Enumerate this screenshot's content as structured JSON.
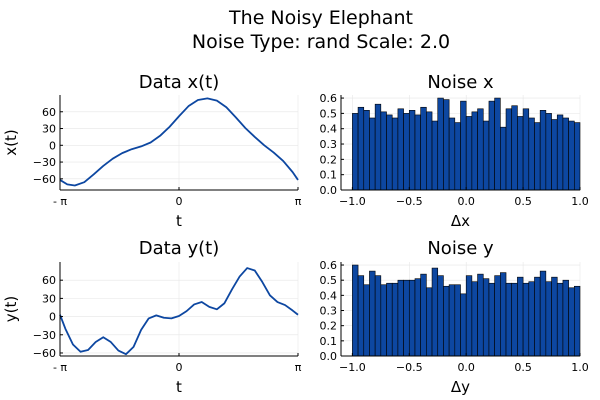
{
  "figure": {
    "title_line1": "The Noisy Elephant",
    "title_line2": "Noise Type: rand Scale: 2.0"
  },
  "colors": {
    "line": "#0d47a1",
    "bar": "#0d47a1",
    "bar_edge": "#000000",
    "grid": "#e6e6e6",
    "axis": "#000000"
  },
  "chart_data": [
    {
      "id": "data-x",
      "type": "line",
      "title": "Data x(t)",
      "xlabel": "t",
      "ylabel": "x(t)",
      "xlim": [
        -3.1416,
        3.1416
      ],
      "ylim": [
        -80,
        90
      ],
      "xticks": [
        {
          "value": -3.1416,
          "label": "- π"
        },
        {
          "value": 0,
          "label": "0"
        },
        {
          "value": 3.1416,
          "label": "π"
        }
      ],
      "yticks": [
        {
          "value": 60,
          "label": "60"
        },
        {
          "value": 30,
          "label": "30"
        },
        {
          "value": 0,
          "label": "0"
        },
        {
          "value": -30,
          "label": "−30"
        },
        {
          "value": -60,
          "label": "−60"
        }
      ],
      "x": [
        -3.1416,
        -2.95,
        -2.75,
        -2.5,
        -2.25,
        -2.0,
        -1.75,
        -1.5,
        -1.25,
        -1.0,
        -0.75,
        -0.5,
        -0.25,
        0,
        0.25,
        0.5,
        0.75,
        1.0,
        1.25,
        1.5,
        1.75,
        2.0,
        2.25,
        2.5,
        2.75,
        3.0,
        3.1416
      ],
      "y": [
        -62,
        -70,
        -72,
        -66,
        -52,
        -37,
        -24,
        -14,
        -7,
        -2,
        5,
        17,
        33,
        52,
        70,
        81,
        84,
        80,
        68,
        50,
        31,
        15,
        0,
        -13,
        -28,
        -48,
        -62
      ]
    },
    {
      "id": "noise-x",
      "type": "bar",
      "title": "Noise x",
      "xlabel": "Δx",
      "ylabel": "",
      "xlim": [
        -1.1,
        1.0
      ],
      "ylim": [
        0,
        0.62
      ],
      "bin_start": -1.0,
      "bin_width": 0.05,
      "xticks": [
        {
          "value": -1.0,
          "label": "−1.0"
        },
        {
          "value": -0.5,
          "label": "−0.5"
        },
        {
          "value": 0.0,
          "label": "0.0"
        },
        {
          "value": 0.5,
          "label": "0.5"
        },
        {
          "value": 1.0,
          "label": "1.0"
        }
      ],
      "yticks": [
        {
          "value": 0.0,
          "label": "0.0"
        },
        {
          "value": 0.1,
          "label": "0.1"
        },
        {
          "value": 0.2,
          "label": "0.2"
        },
        {
          "value": 0.3,
          "label": "0.3"
        },
        {
          "value": 0.4,
          "label": "0.4"
        },
        {
          "value": 0.5,
          "label": "0.5"
        },
        {
          "value": 0.6,
          "label": "0.6"
        }
      ],
      "values": [
        0.5,
        0.54,
        0.52,
        0.47,
        0.56,
        0.51,
        0.49,
        0.47,
        0.53,
        0.5,
        0.52,
        0.49,
        0.54,
        0.51,
        0.45,
        0.6,
        0.59,
        0.47,
        0.44,
        0.58,
        0.48,
        0.51,
        0.53,
        0.45,
        0.58,
        0.6,
        0.41,
        0.53,
        0.55,
        0.48,
        0.53,
        0.47,
        0.44,
        0.52,
        0.5,
        0.46,
        0.49,
        0.47,
        0.45,
        0.44
      ]
    },
    {
      "id": "data-y",
      "type": "line",
      "title": "Data y(t)",
      "xlabel": "t",
      "ylabel": "y(t)",
      "xlim": [
        -3.1416,
        3.1416
      ],
      "ylim": [
        -65,
        90
      ],
      "xticks": [
        {
          "value": -3.1416,
          "label": "- π"
        },
        {
          "value": 0,
          "label": "0"
        },
        {
          "value": 3.1416,
          "label": "π"
        }
      ],
      "yticks": [
        {
          "value": 60,
          "label": "60"
        },
        {
          "value": 30,
          "label": "30"
        },
        {
          "value": 0,
          "label": "0"
        },
        {
          "value": -30,
          "label": "−30"
        },
        {
          "value": -60,
          "label": "−60"
        }
      ],
      "x": [
        -3.1416,
        -3.0,
        -2.8,
        -2.6,
        -2.4,
        -2.2,
        -2.0,
        -1.8,
        -1.6,
        -1.4,
        -1.2,
        -1.0,
        -0.8,
        -0.6,
        -0.4,
        -0.2,
        0,
        0.2,
        0.4,
        0.6,
        0.8,
        1.0,
        1.2,
        1.4,
        1.6,
        1.8,
        2.0,
        2.2,
        2.4,
        2.6,
        2.8,
        3.0,
        3.1416
      ],
      "y": [
        3,
        -20,
        -46,
        -58,
        -55,
        -42,
        -34,
        -42,
        -56,
        -62,
        -50,
        -22,
        -3,
        2,
        -2,
        -3,
        1,
        9,
        20,
        24,
        16,
        12,
        22,
        45,
        66,
        80,
        76,
        57,
        35,
        24,
        19,
        10,
        3
      ]
    },
    {
      "id": "noise-y",
      "type": "bar",
      "title": "Noise y",
      "xlabel": "Δy",
      "ylabel": "",
      "xlim": [
        -1.1,
        1.0
      ],
      "ylim": [
        0,
        0.62
      ],
      "bin_start": -1.0,
      "bin_width": 0.05,
      "xticks": [
        {
          "value": -1.0,
          "label": "−1.0"
        },
        {
          "value": -0.5,
          "label": "−0.5"
        },
        {
          "value": 0.0,
          "label": "0.0"
        },
        {
          "value": 0.5,
          "label": "0.5"
        },
        {
          "value": 1.0,
          "label": "1.0"
        }
      ],
      "yticks": [
        {
          "value": 0.0,
          "label": "0.0"
        },
        {
          "value": 0.1,
          "label": "0.1"
        },
        {
          "value": 0.2,
          "label": "0.2"
        },
        {
          "value": 0.3,
          "label": "0.3"
        },
        {
          "value": 0.4,
          "label": "0.4"
        },
        {
          "value": 0.5,
          "label": "0.5"
        },
        {
          "value": 0.6,
          "label": "0.6"
        }
      ],
      "values": [
        0.6,
        0.53,
        0.47,
        0.56,
        0.53,
        0.47,
        0.48,
        0.48,
        0.5,
        0.5,
        0.5,
        0.51,
        0.54,
        0.45,
        0.58,
        0.53,
        0.46,
        0.47,
        0.47,
        0.41,
        0.53,
        0.49,
        0.54,
        0.51,
        0.48,
        0.53,
        0.55,
        0.48,
        0.48,
        0.52,
        0.48,
        0.49,
        0.52,
        0.56,
        0.49,
        0.52,
        0.48,
        0.5,
        0.45,
        0.46
      ]
    }
  ]
}
